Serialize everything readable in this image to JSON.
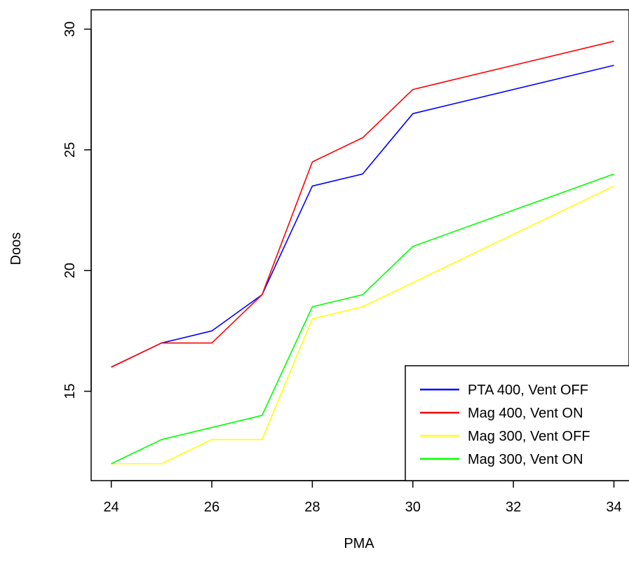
{
  "chart_data": {
    "type": "line",
    "title": "",
    "xlabel": "PMA",
    "ylabel": "Doos",
    "xlim": [
      23.6,
      34.3
    ],
    "ylim": [
      11.3,
      30.8
    ],
    "xticks": [
      24,
      26,
      28,
      30,
      32,
      34
    ],
    "yticks": [
      15,
      20,
      25,
      30
    ],
    "grid": false,
    "legend_position": "bottom-right",
    "x": [
      24,
      25,
      26,
      27,
      28,
      29,
      30,
      34
    ],
    "series": [
      {
        "name": "PTA 400, Vent OFF",
        "color": "#0000ff",
        "values": [
          16,
          17,
          17.5,
          19,
          23.5,
          24,
          26.5,
          28.5
        ]
      },
      {
        "name": "Mag 400, Vent ON",
        "color": "#ff0000",
        "values": [
          16,
          17,
          17,
          19,
          24.5,
          25.5,
          27.5,
          29.5
        ]
      },
      {
        "name": "Mag 300, Vent OFF",
        "color": "#ffff00",
        "values": [
          12,
          12,
          13,
          13,
          18,
          18.5,
          19.5,
          23.5
        ]
      },
      {
        "name": "Mag 300, Vent ON",
        "color": "#00ff00",
        "values": [
          12,
          13,
          13.5,
          14,
          18.5,
          19,
          21,
          24
        ]
      }
    ]
  }
}
